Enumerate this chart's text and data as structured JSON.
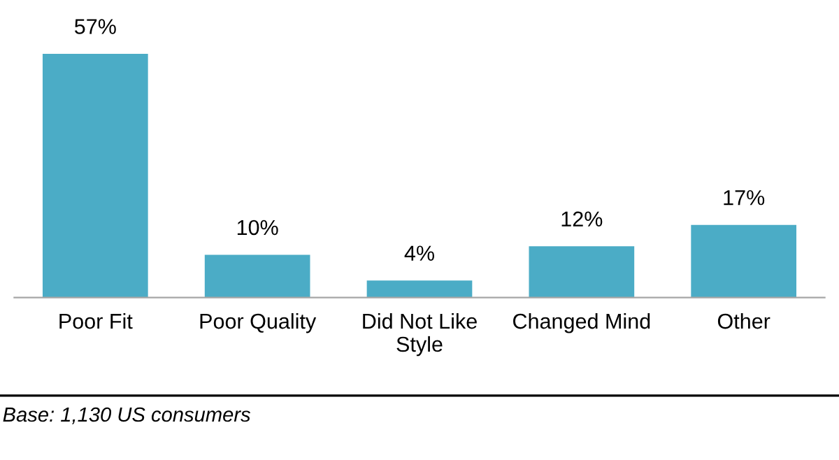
{
  "chart_data": {
    "type": "bar",
    "categories": [
      "Poor Fit",
      "Poor Quality",
      "Did Not Like\nStyle",
      "Changed Mind",
      "Other"
    ],
    "values": [
      57,
      10,
      4,
      12,
      17
    ],
    "value_labels": [
      "57%",
      "10%",
      "4%",
      "12%",
      "17%"
    ],
    "color": "#4bacc6",
    "grid": false,
    "legend": false,
    "annotations": [
      "Base: 1,130 US consumers"
    ]
  }
}
